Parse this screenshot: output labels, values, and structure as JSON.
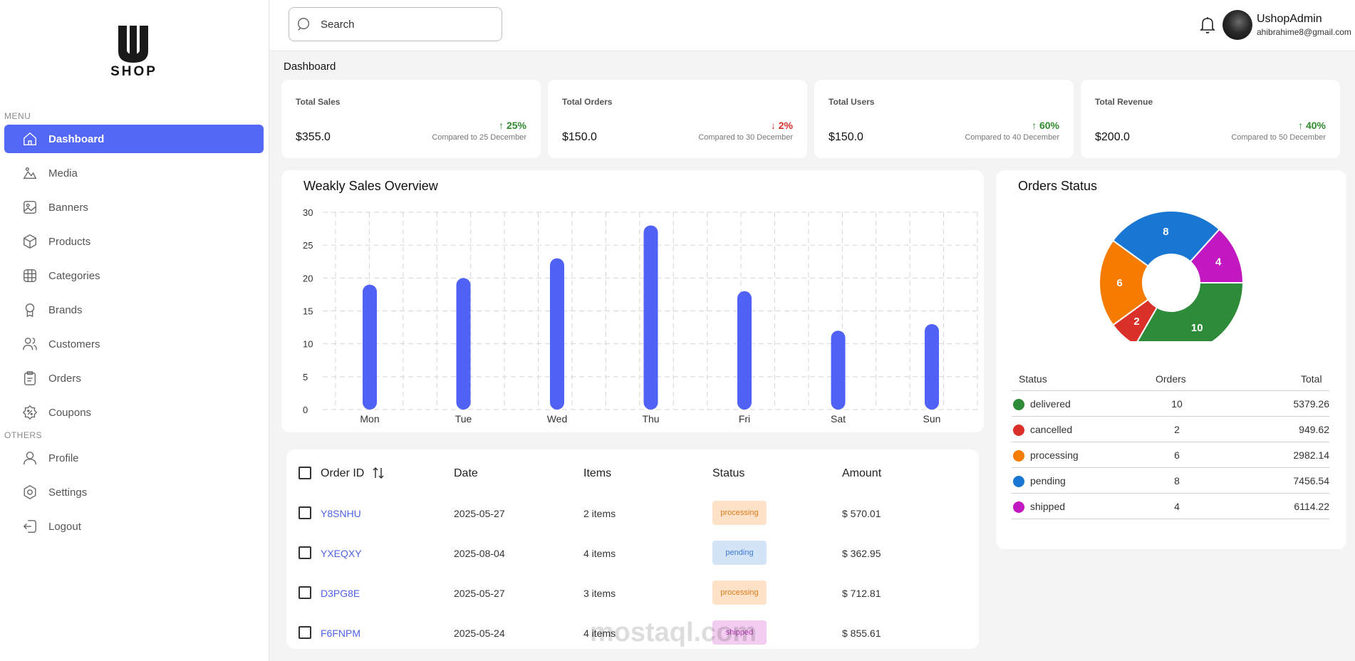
{
  "brand": {
    "logo_text": "SHOP"
  },
  "sidebar": {
    "menu_label": "MENU",
    "others_label": "OTHERS",
    "items": [
      {
        "label": "Dashboard",
        "icon": "home-icon"
      },
      {
        "label": "Media",
        "icon": "media-icon"
      },
      {
        "label": "Banners",
        "icon": "image-icon"
      },
      {
        "label": "Products",
        "icon": "box-icon"
      },
      {
        "label": "Categories",
        "icon": "grid-icon"
      },
      {
        "label": "Brands",
        "icon": "award-icon"
      },
      {
        "label": "Customers",
        "icon": "users-icon"
      },
      {
        "label": "Orders",
        "icon": "clipboard-icon"
      },
      {
        "label": "Coupons",
        "icon": "coupon-icon"
      }
    ],
    "others": [
      {
        "label": "Profile",
        "icon": "user-icon"
      },
      {
        "label": "Settings",
        "icon": "gear-icon"
      },
      {
        "label": "Logout",
        "icon": "logout-icon"
      }
    ]
  },
  "header": {
    "search_placeholder": "Search",
    "user_name": "UshopAdmin",
    "user_email": "ahibrahime8@gmail.com"
  },
  "page": {
    "title": "Dashboard"
  },
  "stats": [
    {
      "label": "Total Sales",
      "value": "$355.0",
      "change": "25%",
      "direction": "up",
      "compare": "Compared to 25 December"
    },
    {
      "label": "Total Orders",
      "value": "$150.0",
      "change": "2%",
      "direction": "down",
      "compare": "Compared to 30 December"
    },
    {
      "label": "Total Users",
      "value": "$150.0",
      "change": "60%",
      "direction": "up",
      "compare": "Compared to 40 December"
    },
    {
      "label": "Total Revenue",
      "value": "$200.0",
      "change": "40%",
      "direction": "up",
      "compare": "Compared to 50 December"
    }
  ],
  "weekly_chart_title": "Weakly Sales Overview",
  "orders_status_title": "Orders Status",
  "chart_data": [
    {
      "type": "bar",
      "title": "Weakly Sales Overview",
      "categories": [
        "Mon",
        "Tue",
        "Wed",
        "Thu",
        "Fri",
        "Sat",
        "Sun"
      ],
      "values": [
        19,
        20,
        23,
        28,
        18,
        12,
        13
      ],
      "ylim": [
        0,
        30
      ],
      "yticks": [
        0,
        5,
        10,
        15,
        20,
        25,
        30
      ],
      "grid": true,
      "color": "#4f62f5"
    },
    {
      "type": "pie",
      "title": "Orders Status",
      "categories": [
        "delivered",
        "cancelled",
        "processing",
        "pending",
        "shipped"
      ],
      "values": [
        10,
        2,
        6,
        8,
        4
      ],
      "colors": [
        "#2e8b3a",
        "#d9302a",
        "#f57c00",
        "#1976d2",
        "#c218c2"
      ]
    }
  ],
  "orders_status": {
    "headers": {
      "status": "Status",
      "orders": "Orders",
      "total": "Total"
    },
    "rows": [
      {
        "status": "delivered",
        "orders": "10",
        "total": "5379.26",
        "color": "#2e8b3a"
      },
      {
        "status": "cancelled",
        "orders": "2",
        "total": "949.62",
        "color": "#d9302a"
      },
      {
        "status": "processing",
        "orders": "6",
        "total": "2982.14",
        "color": "#f57c00"
      },
      {
        "status": "pending",
        "orders": "8",
        "total": "7456.54",
        "color": "#1976d2"
      },
      {
        "status": "shipped",
        "orders": "4",
        "total": "6114.22",
        "color": "#c218c2"
      }
    ]
  },
  "orders_table": {
    "headers": {
      "id": "Order ID",
      "date": "Date",
      "items": "Items",
      "status": "Status",
      "amount": "Amount"
    },
    "rows": [
      {
        "id": "Y8SNHU",
        "date": "2025-05-27",
        "items": "2 items",
        "status": "processing",
        "amount": "$ 570.01"
      },
      {
        "id": "YXEQXY",
        "date": "2025-08-04",
        "items": "4 items",
        "status": "pending",
        "amount": "$ 362.95"
      },
      {
        "id": "D3PG8E",
        "date": "2025-05-27",
        "items": "3 items",
        "status": "processing",
        "amount": "$ 712.81"
      },
      {
        "id": "F6FNPM",
        "date": "2025-05-24",
        "items": "4 items",
        "status": "shipped",
        "amount": "$ 855.61"
      }
    ]
  },
  "watermark": {
    "text": "mostaql.com"
  }
}
